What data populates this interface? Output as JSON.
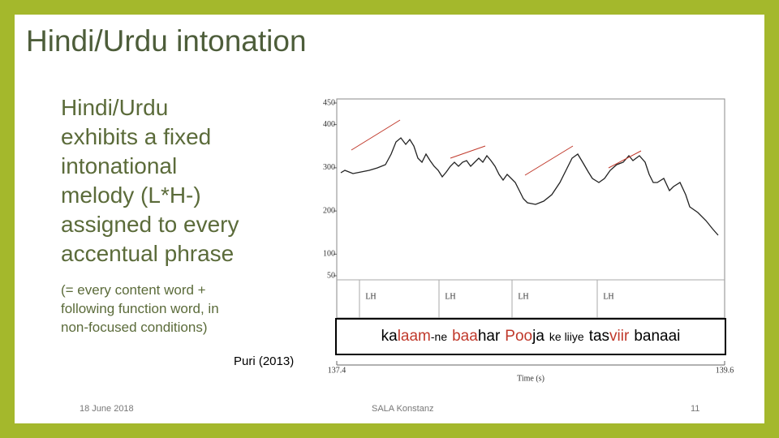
{
  "title": "Hindi/Urdu intonation",
  "bullet": [
    "Hindi/Urdu",
    "exhibits a fixed",
    "intonational",
    "melody (L*H-)",
    "assigned to every",
    "accentual phrase"
  ],
  "sub_bullet": [
    "(= every content word +",
    "following function word, in",
    "non-focused conditions)"
  ],
  "citation": "Puri (2013)",
  "figure": {
    "ylim": [
      50,
      450
    ],
    "yticks": [
      450,
      400,
      300,
      200,
      100,
      50
    ],
    "xlim": [
      137.4,
      139.6
    ],
    "xticks": [
      137.4,
      139.6
    ],
    "x_label": "Time (s)",
    "tones": [
      "LH",
      "LH",
      "LH",
      "LH"
    ],
    "words": [
      [
        {
          "text": "ka"
        },
        {
          "text": "laam",
          "stress": true
        },
        {
          "text": "-ne",
          "small": true
        }
      ],
      [
        {
          "text": "baa",
          "stress": true
        },
        {
          "text": "har"
        }
      ],
      [
        {
          "text": "Poo",
          "stress": true
        },
        {
          "text": "ja"
        }
      ],
      [
        {
          "text": "ke liiye",
          "small": true
        }
      ],
      [
        {
          "text": "tas"
        },
        {
          "text": "viir",
          "stress": true
        }
      ],
      [
        {
          "text": "banaai"
        }
      ]
    ]
  },
  "footer": {
    "date": "18 June 2018",
    "center": "SALA Konstanz",
    "page": "11"
  }
}
